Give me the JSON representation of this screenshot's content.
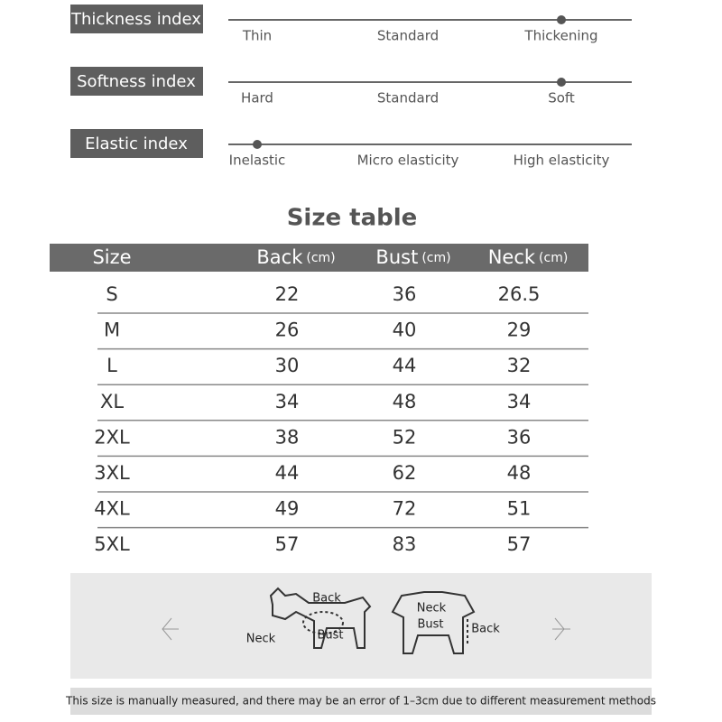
{
  "indices": [
    {
      "label": "Thickness index",
      "options": [
        "Thin",
        "Standard",
        "Thickening"
      ],
      "selected": 2
    },
    {
      "label": "Softness index",
      "options": [
        "Hard",
        "Standard",
        "Soft"
      ],
      "selected": 2
    },
    {
      "label": "Elastic index",
      "options": [
        "Inelastic",
        "Micro elasticity",
        "High elasticity"
      ],
      "selected": 0
    }
  ],
  "table": {
    "title": "Size table",
    "header": [
      {
        "name": "Size"
      },
      {
        "name": "Back",
        "unit": "(cm)"
      },
      {
        "name": "Bust",
        "unit": "(cm)"
      },
      {
        "name": "Neck",
        "unit": "(cm)"
      }
    ],
    "rows": [
      [
        "S",
        22,
        36,
        26.5
      ],
      [
        "M",
        26,
        40,
        29
      ],
      [
        "L",
        30,
        44,
        32
      ],
      [
        "XL",
        34,
        48,
        34
      ],
      [
        "2XL",
        38,
        52,
        36
      ],
      [
        "3XL",
        44,
        62,
        48
      ],
      [
        "4XL",
        49,
        72,
        51
      ],
      [
        "5XL",
        57,
        83,
        57
      ]
    ]
  },
  "diagram": {
    "dog": {
      "back": "Back",
      "neck": "Neck",
      "bust": "Bust"
    },
    "garment": {
      "neck": "Neck",
      "bust": "Bust",
      "back": "Back"
    }
  },
  "note": "This size is manually measured, and there may be an error of 1–3cm due to different measurement methods"
}
